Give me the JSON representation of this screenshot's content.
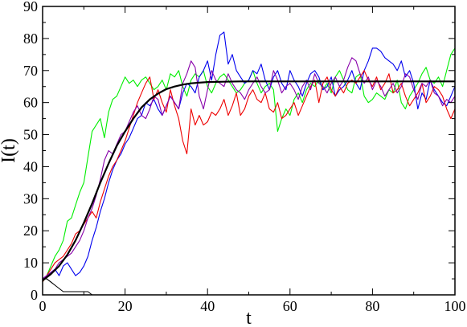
{
  "chart_data": {
    "type": "line",
    "xlabel": "t",
    "ylabel": "I(t)",
    "xlim": [
      0,
      100
    ],
    "ylim": [
      0,
      90
    ],
    "x_ticks": [
      0,
      20,
      40,
      60,
      80,
      100
    ],
    "y_ticks": [
      0,
      10,
      20,
      30,
      40,
      50,
      60,
      70,
      80,
      90
    ],
    "grid": false,
    "legend": "none",
    "series": [
      {
        "color": "#00ee00",
        "x": [
          0,
          1,
          2,
          3,
          4,
          5,
          6,
          7,
          8,
          9,
          10,
          11,
          12,
          13,
          14,
          15,
          16,
          17,
          18,
          19,
          20,
          21,
          22,
          23,
          24,
          25,
          26,
          27,
          28,
          29,
          30,
          31,
          32,
          33,
          34,
          35,
          36,
          37,
          38,
          39,
          40,
          41,
          42,
          43,
          44,
          45,
          46,
          47,
          48,
          49,
          50,
          51,
          52,
          53,
          54,
          55,
          56,
          57,
          58,
          59,
          60,
          61,
          62,
          63,
          64,
          65,
          66,
          67,
          68,
          69,
          70,
          71,
          72,
          73,
          74,
          75,
          76,
          77,
          78,
          79,
          80,
          81,
          82,
          83,
          84,
          85,
          86,
          87,
          88,
          89,
          90,
          91,
          92,
          93,
          94,
          95,
          96,
          97,
          98,
          99,
          100
        ],
        "values": [
          4,
          6,
          9,
          12,
          14,
          17,
          23,
          24,
          28,
          32,
          35,
          43,
          51,
          53,
          55,
          49,
          57,
          61,
          62,
          65,
          68,
          66,
          67,
          65,
          67,
          68,
          66,
          64,
          65,
          67,
          64,
          69,
          68,
          70,
          65,
          62,
          67,
          69,
          68,
          70,
          65,
          63,
          66,
          68,
          69,
          67,
          65,
          63,
          64,
          66,
          67,
          70,
          66,
          63,
          65,
          66,
          64,
          51,
          55,
          58,
          56,
          61,
          63,
          60,
          64,
          66,
          65,
          67,
          64,
          66,
          63,
          68,
          70,
          67,
          64,
          63,
          68,
          69,
          62,
          60,
          61,
          63,
          62,
          61,
          64,
          63,
          67,
          60,
          58,
          62,
          64,
          66,
          69,
          71,
          67,
          66,
          68,
          65,
          70,
          75,
          77
        ]
      },
      {
        "color": "#0000ee",
        "x": [
          0,
          1,
          2,
          3,
          4,
          5,
          6,
          7,
          8,
          9,
          10,
          11,
          12,
          13,
          14,
          15,
          16,
          17,
          18,
          19,
          20,
          21,
          22,
          23,
          24,
          25,
          26,
          27,
          28,
          29,
          30,
          31,
          32,
          33,
          34,
          35,
          36,
          37,
          38,
          39,
          40,
          41,
          42,
          43,
          44,
          45,
          46,
          47,
          48,
          49,
          50,
          51,
          52,
          53,
          54,
          55,
          56,
          57,
          58,
          59,
          60,
          61,
          62,
          63,
          64,
          65,
          66,
          67,
          68,
          69,
          70,
          71,
          72,
          73,
          74,
          75,
          76,
          77,
          78,
          79,
          80,
          81,
          82,
          83,
          84,
          85,
          86,
          87,
          88,
          89,
          90,
          91,
          92,
          93,
          94,
          95,
          96,
          97,
          98,
          99,
          100
        ],
        "values": [
          5,
          6,
          7,
          8,
          6,
          9,
          10,
          8,
          6,
          7,
          9,
          12,
          17,
          21,
          26,
          30,
          35,
          39,
          42,
          44,
          47,
          49,
          52,
          55,
          56,
          60,
          59,
          61,
          58,
          56,
          59,
          62,
          60,
          58,
          63,
          66,
          65,
          63,
          68,
          70,
          73,
          67,
          75,
          81,
          82,
          72,
          75,
          70,
          68,
          66,
          67,
          70,
          69,
          72,
          67,
          64,
          68,
          70,
          66,
          64,
          70,
          67,
          65,
          62,
          66,
          69,
          70,
          68,
          64,
          65,
          68,
          62,
          64,
          65,
          67,
          70,
          66,
          64,
          70,
          73,
          77,
          77,
          76,
          74,
          73,
          72,
          70,
          73,
          68,
          70,
          66,
          58,
          63,
          61,
          67,
          64,
          62,
          60,
          59,
          62,
          65
        ]
      },
      {
        "color": "#ee0000",
        "x": [
          0,
          1,
          2,
          3,
          4,
          5,
          6,
          7,
          8,
          9,
          10,
          11,
          12,
          13,
          14,
          15,
          16,
          17,
          18,
          19,
          20,
          21,
          22,
          23,
          24,
          25,
          26,
          27,
          28,
          29,
          30,
          31,
          32,
          33,
          34,
          35,
          36,
          37,
          38,
          39,
          40,
          41,
          42,
          43,
          44,
          45,
          46,
          47,
          48,
          49,
          50,
          51,
          52,
          53,
          54,
          55,
          56,
          57,
          58,
          59,
          60,
          61,
          62,
          63,
          64,
          65,
          66,
          67,
          68,
          69,
          70,
          71,
          72,
          73,
          74,
          75,
          76,
          77,
          78,
          79,
          80,
          81,
          82,
          83,
          84,
          85,
          86,
          87,
          88,
          89,
          90,
          91,
          92,
          93,
          94,
          95,
          96,
          97,
          98,
          99,
          100
        ],
        "values": [
          4,
          6,
          8,
          10,
          11,
          12,
          14,
          16,
          19,
          20,
          22,
          24,
          26,
          24,
          29,
          33,
          37,
          40,
          42,
          45,
          48,
          52,
          56,
          60,
          63,
          66,
          68,
          61,
          64,
          60,
          57,
          64,
          59,
          55,
          48,
          44,
          58,
          53,
          56,
          53,
          54,
          57,
          56,
          58,
          61,
          56,
          59,
          63,
          56,
          58,
          62,
          64,
          61,
          60,
          63,
          58,
          57,
          60,
          55,
          56,
          58,
          60,
          56,
          59,
          62,
          65,
          67,
          60,
          66,
          68,
          64,
          62,
          65,
          63,
          66,
          67,
          66,
          68,
          70,
          67,
          65,
          68,
          64,
          66,
          69,
          63,
          64,
          66,
          62,
          59,
          61,
          63,
          66,
          60,
          62,
          65,
          64,
          62,
          58,
          55,
          58
        ]
      },
      {
        "color": "#8800aa",
        "x": [
          0,
          1,
          2,
          3,
          4,
          5,
          6,
          7,
          8,
          9,
          10,
          11,
          12,
          13,
          14,
          15,
          16,
          17,
          18,
          19,
          20,
          21,
          22,
          23,
          24,
          25,
          26,
          27,
          28,
          29,
          30,
          31,
          32,
          33,
          34,
          35,
          36,
          37,
          38,
          39,
          40,
          41,
          42,
          43,
          44,
          45,
          46,
          47,
          48,
          49,
          50,
          51,
          52,
          53,
          54,
          55,
          56,
          57,
          58,
          59,
          60,
          61,
          62,
          63,
          64,
          65,
          66,
          67,
          68,
          69,
          70,
          71,
          72,
          73,
          74,
          75,
          76,
          77,
          78,
          79,
          80,
          81,
          82,
          83,
          84,
          85,
          86,
          87,
          88,
          89,
          90,
          91,
          92,
          93,
          94,
          95,
          96,
          97,
          98,
          99,
          100
        ],
        "values": [
          5,
          6,
          7,
          8,
          10,
          11,
          12,
          13,
          15,
          17,
          20,
          24,
          27,
          31,
          36,
          42,
          45,
          44,
          47,
          50,
          51,
          54,
          57,
          59,
          56,
          55,
          58,
          62,
          61,
          56,
          59,
          62,
          60,
          58,
          66,
          69,
          73,
          71,
          62,
          58,
          64,
          70,
          67,
          66,
          65,
          69,
          66,
          64,
          63,
          61,
          64,
          66,
          68,
          65,
          63,
          64,
          70,
          67,
          63,
          65,
          66,
          64,
          61,
          65,
          67,
          64,
          69,
          66,
          65,
          63,
          66,
          68,
          65,
          67,
          71,
          74,
          73,
          69,
          66,
          68,
          64,
          67,
          65,
          62,
          64,
          66,
          63,
          65,
          69,
          68,
          64,
          61,
          66,
          65,
          67,
          63,
          62,
          59,
          61,
          60,
          62
        ]
      },
      {
        "color": "#000000",
        "x": [
          0,
          2,
          4,
          6,
          8,
          10,
          12,
          14,
          16,
          18,
          20,
          22,
          24,
          26,
          28,
          30,
          32,
          34,
          36,
          38,
          40,
          44,
          48,
          52,
          56,
          60,
          70,
          80,
          90,
          100
        ],
        "values": [
          4.5,
          6.5,
          9.0,
          12.5,
          17.0,
          22.5,
          28.5,
          35.0,
          41.0,
          46.5,
          51.0,
          55.0,
          58.5,
          61.0,
          62.8,
          64.2,
          65.0,
          65.6,
          66.0,
          66.2,
          66.4,
          66.5,
          66.6,
          66.6,
          66.6,
          66.6,
          66.6,
          66.6,
          66.6,
          66.6
        ]
      },
      {
        "color": "#000000",
        "x": [
          0,
          1,
          2,
          3,
          4,
          5,
          6,
          7,
          8,
          9,
          10,
          11,
          12
        ],
        "values": [
          5,
          5,
          4,
          3,
          2,
          1,
          1,
          1,
          1,
          1,
          1,
          1,
          0
        ]
      }
    ]
  }
}
